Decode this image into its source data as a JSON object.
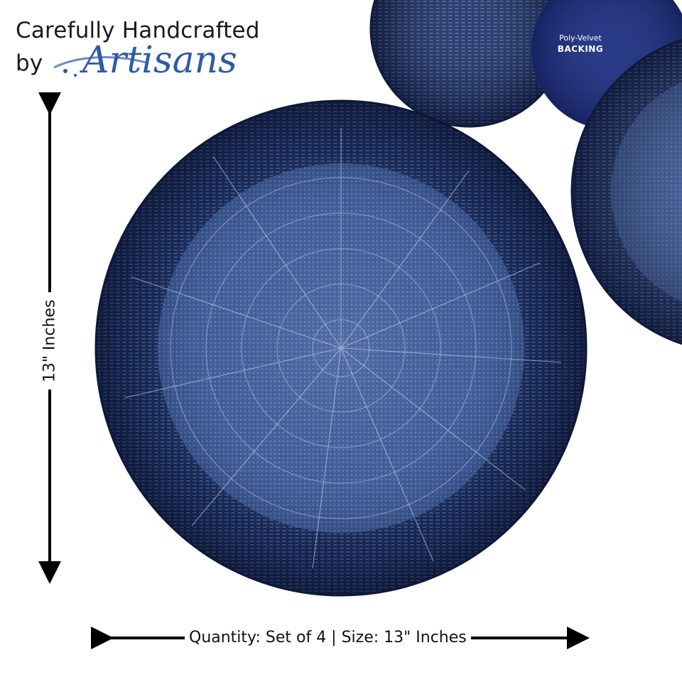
{
  "headline": {
    "line1": "Carefully Handcrafted",
    "line2": "by",
    "script_word": "Artisans"
  },
  "backing": {
    "small": "Poly-Velvet",
    "bold": "BACKING"
  },
  "dimension_vertical": "13\" Inches",
  "dimension_caption": "Quantity: Set of 4 | Size: 13\" Inches",
  "colors": {
    "navy_dark": "#18284f",
    "navy_mid": "#2c4780",
    "navy_light": "#5e7bb6",
    "velvet": "#1e2f80",
    "script_blue": "#2f5aa8",
    "arrow": "#000000"
  }
}
